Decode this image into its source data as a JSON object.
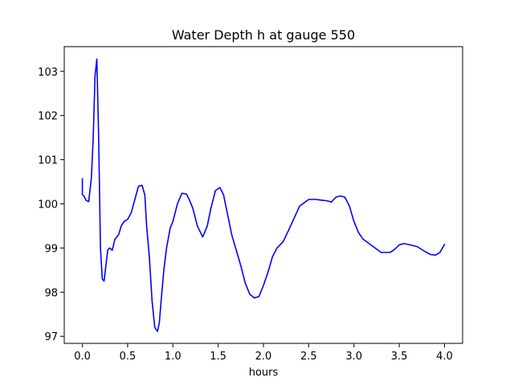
{
  "chart_data": {
    "type": "line",
    "title": "Water Depth h at gauge 550",
    "xlabel": "hours",
    "ylabel": "",
    "xlim": [
      -0.2,
      4.2
    ],
    "ylim": [
      96.84,
      103.56
    ],
    "xticks": [
      0.0,
      0.5,
      1.0,
      1.5,
      2.0,
      2.5,
      3.0,
      3.5,
      4.0
    ],
    "xtick_labels": [
      "0.0",
      "0.5",
      "1.0",
      "1.5",
      "2.0",
      "2.5",
      "3.0",
      "3.5",
      "4.0"
    ],
    "yticks": [
      97,
      98,
      99,
      100,
      101,
      102,
      103
    ],
    "ytick_labels": [
      "97",
      "98",
      "99",
      "100",
      "101",
      "102",
      "103"
    ],
    "grid": false,
    "series": [
      {
        "color": "#0000ff",
        "x": [
          0.0,
          0.0,
          0.02,
          0.04,
          0.07,
          0.1,
          0.12,
          0.14,
          0.16,
          0.18,
          0.2,
          0.22,
          0.24,
          0.26,
          0.28,
          0.3,
          0.33,
          0.36,
          0.4,
          0.43,
          0.46,
          0.5,
          0.54,
          0.58,
          0.62,
          0.66,
          0.69,
          0.71,
          0.74,
          0.77,
          0.8,
          0.83,
          0.85,
          0.87,
          0.9,
          0.93,
          0.97,
          1.0,
          1.05,
          1.1,
          1.15,
          1.18,
          1.22,
          1.27,
          1.33,
          1.38,
          1.42,
          1.47,
          1.52,
          1.56,
          1.6,
          1.65,
          1.7,
          1.75,
          1.8,
          1.85,
          1.9,
          1.95,
          2.0,
          2.05,
          2.1,
          2.15,
          2.22,
          2.3,
          2.4,
          2.5,
          2.58,
          2.65,
          2.7,
          2.75,
          2.8,
          2.85,
          2.9,
          2.95,
          3.0,
          3.05,
          3.1,
          3.2,
          3.3,
          3.4,
          3.45,
          3.5,
          3.55,
          3.6,
          3.7,
          3.8,
          3.85,
          3.9,
          3.95,
          4.0
        ],
        "y": [
          100.57,
          100.21,
          100.17,
          100.08,
          100.05,
          100.6,
          101.5,
          102.9,
          103.28,
          101.5,
          99.0,
          98.3,
          98.25,
          98.6,
          98.95,
          99.0,
          98.95,
          99.2,
          99.3,
          99.5,
          99.6,
          99.65,
          99.8,
          100.1,
          100.4,
          100.42,
          100.2,
          99.5,
          98.8,
          97.8,
          97.2,
          97.11,
          97.3,
          97.8,
          98.5,
          99.0,
          99.45,
          99.6,
          100.0,
          100.24,
          100.22,
          100.1,
          99.9,
          99.5,
          99.25,
          99.5,
          99.9,
          100.3,
          100.37,
          100.2,
          99.8,
          99.3,
          98.95,
          98.6,
          98.2,
          97.95,
          97.87,
          97.9,
          98.15,
          98.45,
          98.8,
          99.0,
          99.15,
          99.5,
          99.95,
          100.1,
          100.1,
          100.08,
          100.07,
          100.04,
          100.15,
          100.18,
          100.15,
          99.95,
          99.6,
          99.35,
          99.2,
          99.05,
          98.9,
          98.9,
          98.97,
          99.07,
          99.1,
          99.08,
          99.03,
          98.9,
          98.85,
          98.84,
          98.9,
          99.08
        ]
      }
    ]
  }
}
